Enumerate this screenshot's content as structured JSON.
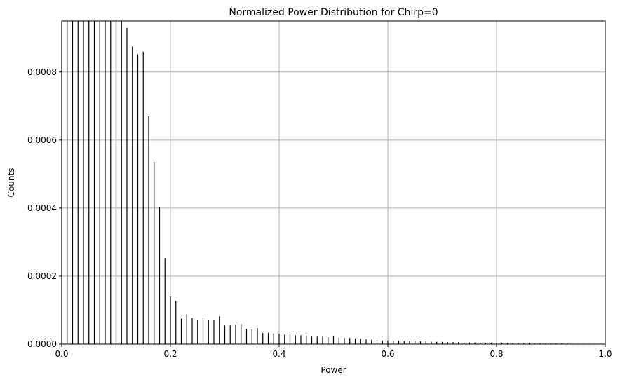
{
  "chart_data": {
    "type": "bar",
    "title": "Normalized Power Distribution for Chirp=0",
    "xlabel": "Power",
    "ylabel": "Counts",
    "xlim": [
      0,
      1
    ],
    "ylim": [
      0,
      0.00095
    ],
    "grid": true,
    "x_ticks": [
      0.0,
      0.2,
      0.4,
      0.6,
      0.8,
      1.0
    ],
    "x_tick_labels": [
      "0.0",
      "0.2",
      "0.4",
      "0.6",
      "0.8",
      "1.0"
    ],
    "y_ticks": [
      0.0,
      0.0002,
      0.0004,
      0.0006,
      0.0008
    ],
    "y_tick_labels": [
      "0.0000",
      "0.0002",
      "0.0004",
      "0.0006",
      "0.0008"
    ],
    "bar_color": "#000000",
    "grid_color": "#b0b0b0",
    "x": [
      0.0,
      0.01,
      0.02,
      0.03,
      0.04,
      0.05,
      0.06,
      0.07,
      0.08,
      0.09,
      0.1,
      0.11,
      0.12,
      0.13,
      0.14,
      0.15,
      0.16,
      0.17,
      0.18,
      0.19,
      0.2,
      0.21,
      0.22,
      0.23,
      0.24,
      0.25,
      0.26,
      0.27,
      0.28,
      0.29,
      0.3,
      0.31,
      0.32,
      0.33,
      0.34,
      0.35,
      0.36,
      0.37,
      0.38,
      0.39,
      0.4,
      0.41,
      0.42,
      0.43,
      0.44,
      0.45,
      0.46,
      0.47,
      0.48,
      0.49,
      0.5,
      0.51,
      0.52,
      0.53,
      0.54,
      0.55,
      0.56,
      0.57,
      0.58,
      0.59,
      0.6,
      0.61,
      0.62,
      0.63,
      0.64,
      0.65,
      0.66,
      0.67,
      0.68,
      0.69,
      0.7,
      0.71,
      0.72,
      0.73,
      0.74,
      0.75,
      0.76,
      0.77,
      0.78,
      0.79,
      0.8,
      0.81,
      0.82,
      0.83,
      0.84,
      0.85,
      0.86,
      0.87,
      0.88,
      0.89,
      0.9,
      0.91,
      0.92,
      0.93,
      0.94,
      0.95,
      0.96,
      0.97,
      0.98,
      0.99
    ],
    "values": [
      0.00095,
      0.00095,
      0.00095,
      0.00095,
      0.00095,
      0.00095,
      0.00095,
      0.00095,
      0.00095,
      0.00095,
      0.00095,
      0.00095,
      0.00093,
      0.000875,
      0.000852,
      0.00086,
      0.00067,
      0.000535,
      0.000402,
      0.000253,
      0.00014,
      0.000127,
      7.5e-05,
      8.8e-05,
      7.7e-05,
      7.2e-05,
      7.7e-05,
      7.2e-05,
      7.2e-05,
      8.2e-05,
      5.5e-05,
      5.5e-05,
      5.7e-05,
      6e-05,
      4.5e-05,
      4.3e-05,
      4.7e-05,
      3.3e-05,
      3.3e-05,
      3.2e-05,
      3e-05,
      2.8e-05,
      2.8e-05,
      2.6e-05,
      2.6e-05,
      2.5e-05,
      2.2e-05,
      2.2e-05,
      2.2e-05,
      2.1e-05,
      2.3e-05,
      1.9e-05,
      1.8e-05,
      1.8e-05,
      1.6e-05,
      1.6e-05,
      1.4e-05,
      1.3e-05,
      1.2e-05,
      1.1e-05,
      1.1e-05,
      1e-05,
      1e-05,
      9e-06,
      9e-06,
      9e-06,
      8e-06,
      8e-06,
      7e-06,
      7e-06,
      7e-06,
      6e-06,
      6e-06,
      6e-06,
      5e-06,
      5e-06,
      5e-06,
      5e-06,
      4e-06,
      4e-06,
      4e-06,
      4e-06,
      3e-06,
      3e-06,
      3e-06,
      3e-06,
      3e-06,
      2e-06,
      2e-06,
      2e-06,
      2e-06,
      2e-06,
      2e-06,
      2e-06,
      1e-06,
      1e-06,
      1e-06,
      1e-06,
      1e-06,
      1e-06
    ]
  }
}
